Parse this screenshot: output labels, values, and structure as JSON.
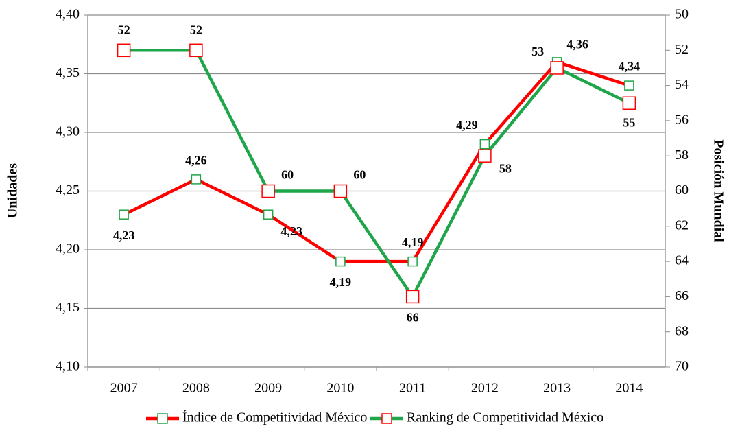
{
  "chart_data": {
    "type": "line",
    "categories": [
      "2007",
      "2008",
      "2009",
      "2010",
      "2011",
      "2012",
      "2013",
      "2014"
    ],
    "ylabel": "Unidades",
    "y2label": "Posición Mundial",
    "ylim": [
      4.1,
      4.4
    ],
    "yticks": [
      {
        "value": 4.1,
        "label": "4,10"
      },
      {
        "value": 4.15,
        "label": "4,15"
      },
      {
        "value": 4.2,
        "label": "4,20"
      },
      {
        "value": 4.25,
        "label": "4,25"
      },
      {
        "value": 4.3,
        "label": "4,30"
      },
      {
        "value": 4.35,
        "label": "4,35"
      },
      {
        "value": 4.4,
        "label": "4,40"
      }
    ],
    "y2lim": [
      70,
      50
    ],
    "y2ticks": [
      50,
      52,
      54,
      56,
      58,
      60,
      62,
      64,
      66,
      68,
      70
    ],
    "grid": true,
    "legend": "bottom",
    "series": [
      {
        "name": "Índice de Competitividad México",
        "color": "#ff0000",
        "marker_color": "#1fa54a",
        "values": [
          4.23,
          4.26,
          4.23,
          4.19,
          4.19,
          4.29,
          4.36,
          4.34
        ],
        "value_labels": [
          "4,23",
          "4,26",
          "4,23",
          "4,19",
          "4,19",
          "4,29",
          "4,36",
          "4,34"
        ]
      },
      {
        "name": "Ranking de Competitividad México",
        "color": "#1fa54a",
        "marker_color": "#ff0000",
        "axis": "y2",
        "values": [
          52,
          52,
          60,
          60,
          66,
          58,
          53,
          55
        ]
      }
    ]
  }
}
